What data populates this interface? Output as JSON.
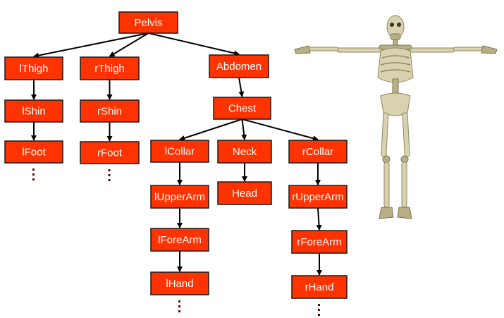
{
  "colors": {
    "node_fill": "#ff3300",
    "node_border": "#1a1a1a",
    "label_text": "#ffffff",
    "edge": "#000000",
    "continuation_dots": "#6b0000"
  },
  "nodes": [
    {
      "id": "pelvis",
      "label": "Pelvis"
    },
    {
      "id": "lthigh",
      "label": "lThigh"
    },
    {
      "id": "rthigh",
      "label": "rThigh"
    },
    {
      "id": "abdomen",
      "label": "Abdomen"
    },
    {
      "id": "lshin",
      "label": "lShin"
    },
    {
      "id": "rshin",
      "label": "rShin"
    },
    {
      "id": "chest",
      "label": "Chest"
    },
    {
      "id": "lfoot",
      "label": "lFoot"
    },
    {
      "id": "rfoot",
      "label": "rFoot"
    },
    {
      "id": "lcollar",
      "label": "lCollar"
    },
    {
      "id": "neck",
      "label": "Neck"
    },
    {
      "id": "rcollar",
      "label": "rCollar"
    },
    {
      "id": "lupperarm",
      "label": "lUpperArm"
    },
    {
      "id": "head",
      "label": "Head"
    },
    {
      "id": "rupperarm",
      "label": "rUpperArm"
    },
    {
      "id": "lforearm",
      "label": "lForeArm"
    },
    {
      "id": "rforearm",
      "label": "rForeArm"
    },
    {
      "id": "lhand",
      "label": "lHand"
    },
    {
      "id": "rhand",
      "label": "rHand"
    }
  ],
  "edges": [
    {
      "from": "pelvis",
      "to": "lthigh"
    },
    {
      "from": "pelvis",
      "to": "rthigh"
    },
    {
      "from": "pelvis",
      "to": "abdomen"
    },
    {
      "from": "lthigh",
      "to": "lshin"
    },
    {
      "from": "lshin",
      "to": "lfoot"
    },
    {
      "from": "rthigh",
      "to": "rshin"
    },
    {
      "from": "rshin",
      "to": "rfoot"
    },
    {
      "from": "abdomen",
      "to": "chest"
    },
    {
      "from": "chest",
      "to": "lcollar"
    },
    {
      "from": "chest",
      "to": "neck"
    },
    {
      "from": "chest",
      "to": "rcollar"
    },
    {
      "from": "lcollar",
      "to": "lupperarm"
    },
    {
      "from": "lupperarm",
      "to": "lforearm"
    },
    {
      "from": "lforearm",
      "to": "lhand"
    },
    {
      "from": "neck",
      "to": "head"
    },
    {
      "from": "rcollar",
      "to": "rupperarm"
    },
    {
      "from": "rupperarm",
      "to": "rforearm"
    },
    {
      "from": "rforearm",
      "to": "rhand"
    }
  ],
  "continuations": [
    "lfoot",
    "rfoot",
    "lhand",
    "rhand"
  ],
  "illustration": "skeleton-t-pose"
}
